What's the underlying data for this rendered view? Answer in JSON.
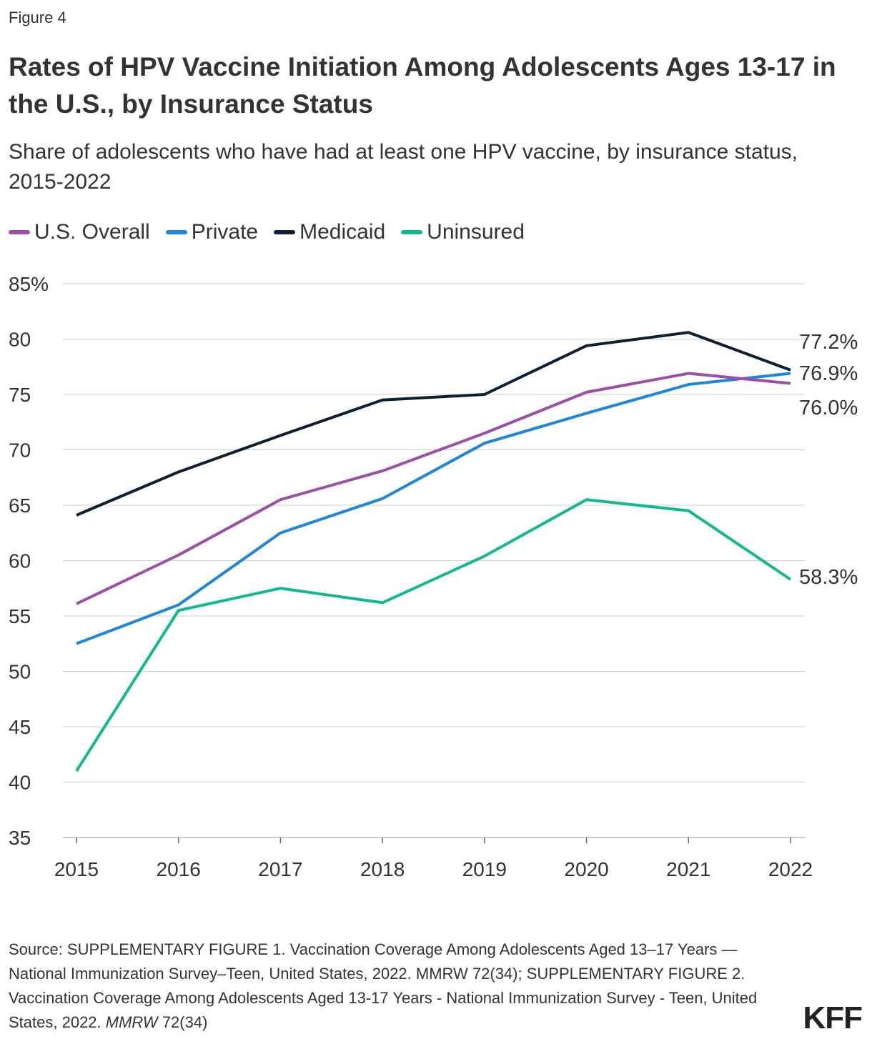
{
  "figure_label": "Figure 4",
  "title": "Rates of HPV Vaccine Initiation Among Adolescents Ages 13-17 in the U.S., by Insurance Status",
  "subtitle": "Share of adolescents who have had at least one HPV vaccine, by insurance status, 2015-2022",
  "source": "Source: SUPPLEMENTARY FIGURE 1. Vaccination Coverage Among Adolescents Aged 13–17 Years — National Immunization Survey–Teen, United States, 2022. MMRW 72(34); SUPPLEMENTARY FIGURE 2. Vaccination Coverage Among Adolescents Aged 13-17 Years - National Immunization Survey - Teen, United States, 2022.",
  "source_italic": "MMRW",
  "source_tail": " 72(34)",
  "logo": "KFF",
  "chart_data": {
    "type": "line",
    "x": [
      "2015",
      "2016",
      "2017",
      "2018",
      "2019",
      "2020",
      "2021",
      "2022"
    ],
    "ylim": [
      35,
      85
    ],
    "yticks": [
      "35",
      "40",
      "45",
      "50",
      "55",
      "60",
      "65",
      "70",
      "75",
      "80",
      "85%"
    ],
    "grid": true,
    "legend_placement": "top-left",
    "series": [
      {
        "name": "U.S. Overall",
        "color": "#9b4fa5",
        "values": [
          56.1,
          60.5,
          65.5,
          68.1,
          71.5,
          75.2,
          76.9,
          76.0
        ],
        "end_label": "76.0%"
      },
      {
        "name": "Private",
        "color": "#1f86d8",
        "values": [
          52.5,
          56.0,
          62.5,
          65.6,
          70.6,
          73.3,
          75.9,
          76.9
        ],
        "end_label": "76.9%"
      },
      {
        "name": "Medicaid",
        "color": "#0d1f33",
        "values": [
          64.1,
          68.0,
          71.3,
          74.5,
          75.0,
          79.4,
          80.6,
          77.2
        ],
        "end_label": "77.2%"
      },
      {
        "name": "Uninsured",
        "color": "#14b88f",
        "values": [
          41.0,
          55.5,
          57.5,
          56.2,
          60.4,
          65.5,
          64.5,
          58.3
        ],
        "end_label": "58.3%"
      }
    ]
  }
}
